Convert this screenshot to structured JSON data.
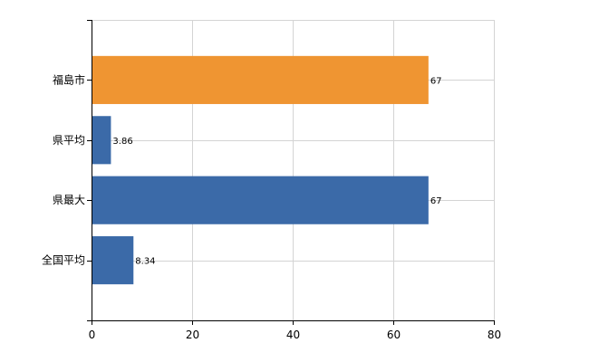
{
  "chart_data": {
    "type": "bar",
    "orientation": "horizontal",
    "categories": [
      "福島市",
      "県平均",
      "県最大",
      "全国平均"
    ],
    "values": [
      67,
      3.86,
      67,
      8.34
    ],
    "value_labels": [
      "67",
      "3.86",
      "67",
      "8.34"
    ],
    "bar_colors": [
      "#ef9532",
      "#3b6aa8",
      "#3b6aa8",
      "#3b6aa8"
    ],
    "xlim": [
      0,
      80
    ],
    "xticks": [
      0,
      20,
      40,
      60,
      80
    ],
    "grid": true,
    "title": "",
    "xlabel": "",
    "ylabel": ""
  }
}
